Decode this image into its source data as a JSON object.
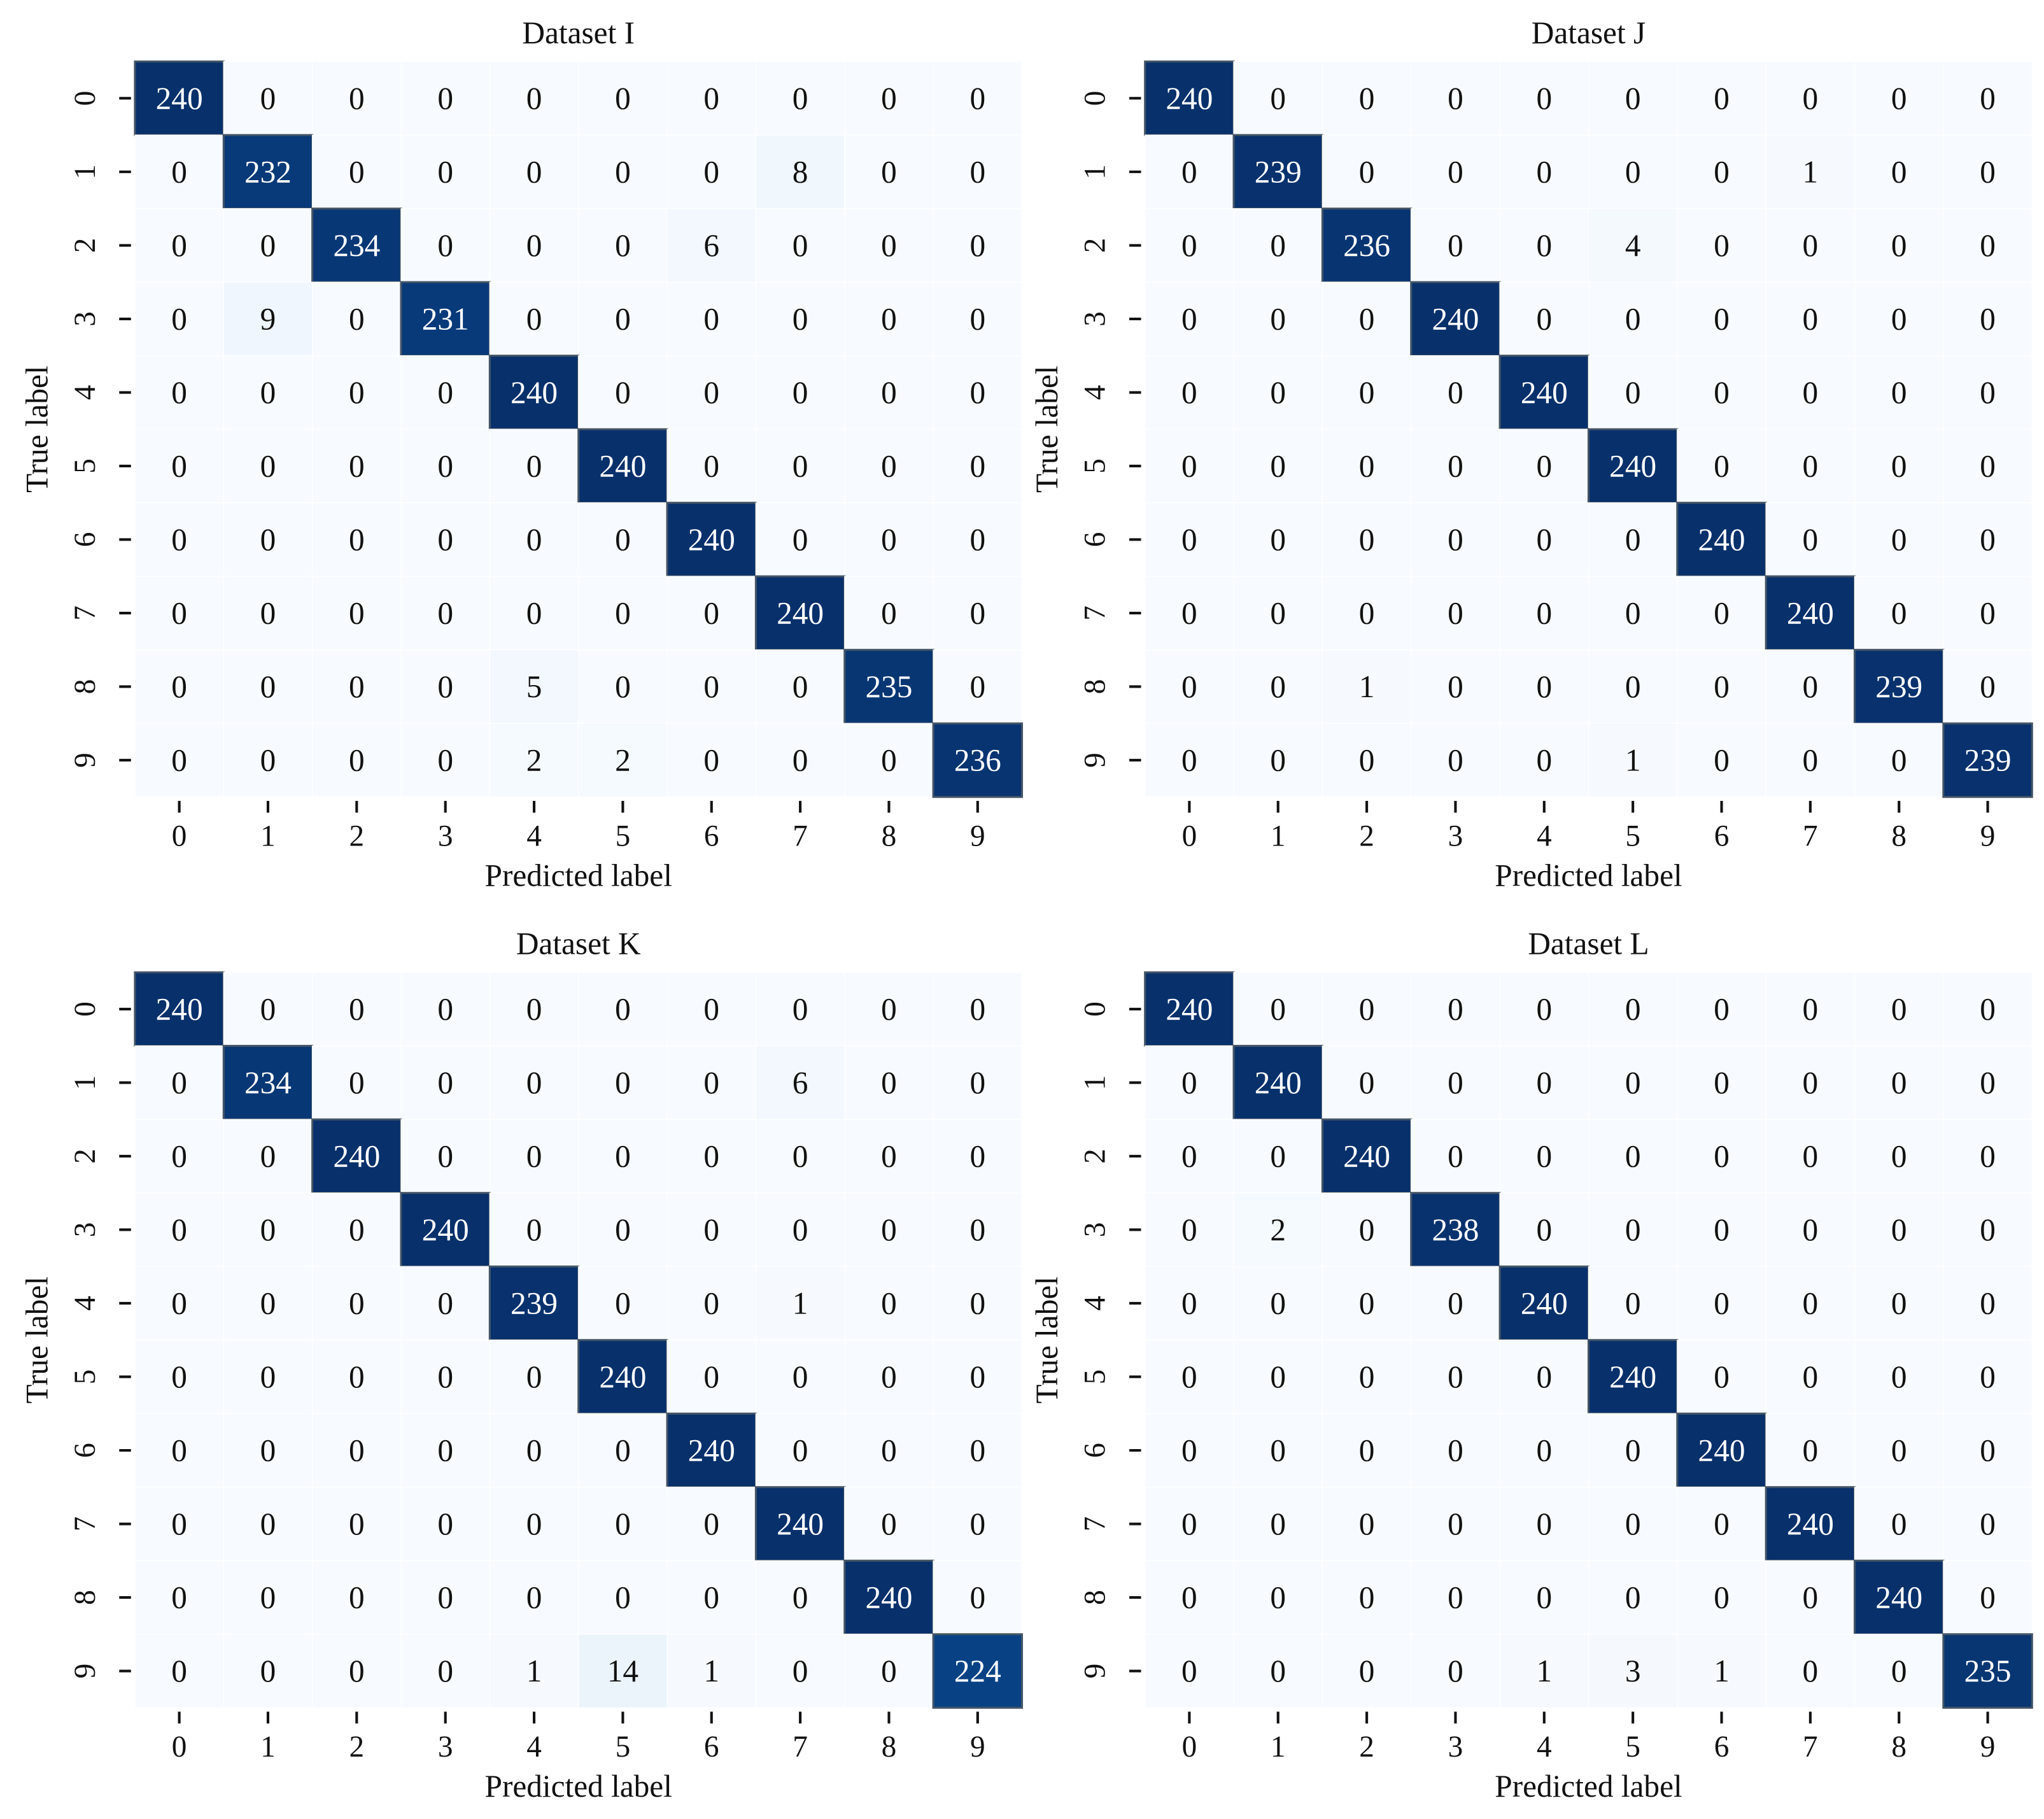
{
  "chart_data": [
    {
      "type": "heatmap",
      "title": "Dataset I",
      "xlabel": "Predicted label",
      "ylabel": "True label",
      "colormap": "Blues",
      "x_categories": [
        "0",
        "1",
        "2",
        "3",
        "4",
        "5",
        "6",
        "7",
        "8",
        "9"
      ],
      "y_categories": [
        "0",
        "1",
        "2",
        "3",
        "4",
        "5",
        "6",
        "7",
        "8",
        "9"
      ],
      "values": [
        [
          240,
          0,
          0,
          0,
          0,
          0,
          0,
          0,
          0,
          0
        ],
        [
          0,
          232,
          0,
          0,
          0,
          0,
          0,
          8,
          0,
          0
        ],
        [
          0,
          0,
          234,
          0,
          0,
          0,
          6,
          0,
          0,
          0
        ],
        [
          0,
          9,
          0,
          231,
          0,
          0,
          0,
          0,
          0,
          0
        ],
        [
          0,
          0,
          0,
          0,
          240,
          0,
          0,
          0,
          0,
          0
        ],
        [
          0,
          0,
          0,
          0,
          0,
          240,
          0,
          0,
          0,
          0
        ],
        [
          0,
          0,
          0,
          0,
          0,
          0,
          240,
          0,
          0,
          0
        ],
        [
          0,
          0,
          0,
          0,
          0,
          0,
          0,
          240,
          0,
          0
        ],
        [
          0,
          0,
          0,
          0,
          5,
          0,
          0,
          0,
          235,
          0
        ],
        [
          0,
          0,
          0,
          0,
          2,
          2,
          0,
          0,
          0,
          236
        ]
      ]
    },
    {
      "type": "heatmap",
      "title": "Dataset J",
      "xlabel": "Predicted label",
      "ylabel": "True label",
      "colormap": "Blues",
      "x_categories": [
        "0",
        "1",
        "2",
        "3",
        "4",
        "5",
        "6",
        "7",
        "8",
        "9"
      ],
      "y_categories": [
        "0",
        "1",
        "2",
        "3",
        "4",
        "5",
        "6",
        "7",
        "8",
        "9"
      ],
      "values": [
        [
          240,
          0,
          0,
          0,
          0,
          0,
          0,
          0,
          0,
          0
        ],
        [
          0,
          239,
          0,
          0,
          0,
          0,
          0,
          1,
          0,
          0
        ],
        [
          0,
          0,
          236,
          0,
          0,
          4,
          0,
          0,
          0,
          0
        ],
        [
          0,
          0,
          0,
          240,
          0,
          0,
          0,
          0,
          0,
          0
        ],
        [
          0,
          0,
          0,
          0,
          240,
          0,
          0,
          0,
          0,
          0
        ],
        [
          0,
          0,
          0,
          0,
          0,
          240,
          0,
          0,
          0,
          0
        ],
        [
          0,
          0,
          0,
          0,
          0,
          0,
          240,
          0,
          0,
          0
        ],
        [
          0,
          0,
          0,
          0,
          0,
          0,
          0,
          240,
          0,
          0
        ],
        [
          0,
          0,
          1,
          0,
          0,
          0,
          0,
          0,
          239,
          0
        ],
        [
          0,
          0,
          0,
          0,
          0,
          1,
          0,
          0,
          0,
          239
        ]
      ]
    },
    {
      "type": "heatmap",
      "title": "Dataset K",
      "xlabel": "Predicted label",
      "ylabel": "True label",
      "colormap": "Blues",
      "x_categories": [
        "0",
        "1",
        "2",
        "3",
        "4",
        "5",
        "6",
        "7",
        "8",
        "9"
      ],
      "y_categories": [
        "0",
        "1",
        "2",
        "3",
        "4",
        "5",
        "6",
        "7",
        "8",
        "9"
      ],
      "values": [
        [
          240,
          0,
          0,
          0,
          0,
          0,
          0,
          0,
          0,
          0
        ],
        [
          0,
          234,
          0,
          0,
          0,
          0,
          0,
          6,
          0,
          0
        ],
        [
          0,
          0,
          240,
          0,
          0,
          0,
          0,
          0,
          0,
          0
        ],
        [
          0,
          0,
          0,
          240,
          0,
          0,
          0,
          0,
          0,
          0
        ],
        [
          0,
          0,
          0,
          0,
          239,
          0,
          0,
          1,
          0,
          0
        ],
        [
          0,
          0,
          0,
          0,
          0,
          240,
          0,
          0,
          0,
          0
        ],
        [
          0,
          0,
          0,
          0,
          0,
          0,
          240,
          0,
          0,
          0
        ],
        [
          0,
          0,
          0,
          0,
          0,
          0,
          0,
          240,
          0,
          0
        ],
        [
          0,
          0,
          0,
          0,
          0,
          0,
          0,
          0,
          240,
          0
        ],
        [
          0,
          0,
          0,
          0,
          1,
          14,
          1,
          0,
          0,
          224
        ]
      ]
    },
    {
      "type": "heatmap",
      "title": "Dataset L",
      "xlabel": "Predicted label",
      "ylabel": "True label",
      "colormap": "Blues",
      "x_categories": [
        "0",
        "1",
        "2",
        "3",
        "4",
        "5",
        "6",
        "7",
        "8",
        "9"
      ],
      "y_categories": [
        "0",
        "1",
        "2",
        "3",
        "4",
        "5",
        "6",
        "7",
        "8",
        "9"
      ],
      "values": [
        [
          240,
          0,
          0,
          0,
          0,
          0,
          0,
          0,
          0,
          0
        ],
        [
          0,
          240,
          0,
          0,
          0,
          0,
          0,
          0,
          0,
          0
        ],
        [
          0,
          0,
          240,
          0,
          0,
          0,
          0,
          0,
          0,
          0
        ],
        [
          0,
          2,
          0,
          238,
          0,
          0,
          0,
          0,
          0,
          0
        ],
        [
          0,
          0,
          0,
          0,
          240,
          0,
          0,
          0,
          0,
          0
        ],
        [
          0,
          0,
          0,
          0,
          0,
          240,
          0,
          0,
          0,
          0
        ],
        [
          0,
          0,
          0,
          0,
          0,
          0,
          240,
          0,
          0,
          0
        ],
        [
          0,
          0,
          0,
          0,
          0,
          0,
          0,
          240,
          0,
          0
        ],
        [
          0,
          0,
          0,
          0,
          0,
          0,
          0,
          0,
          240,
          0
        ],
        [
          0,
          0,
          0,
          0,
          1,
          3,
          1,
          0,
          0,
          235
        ]
      ]
    }
  ]
}
